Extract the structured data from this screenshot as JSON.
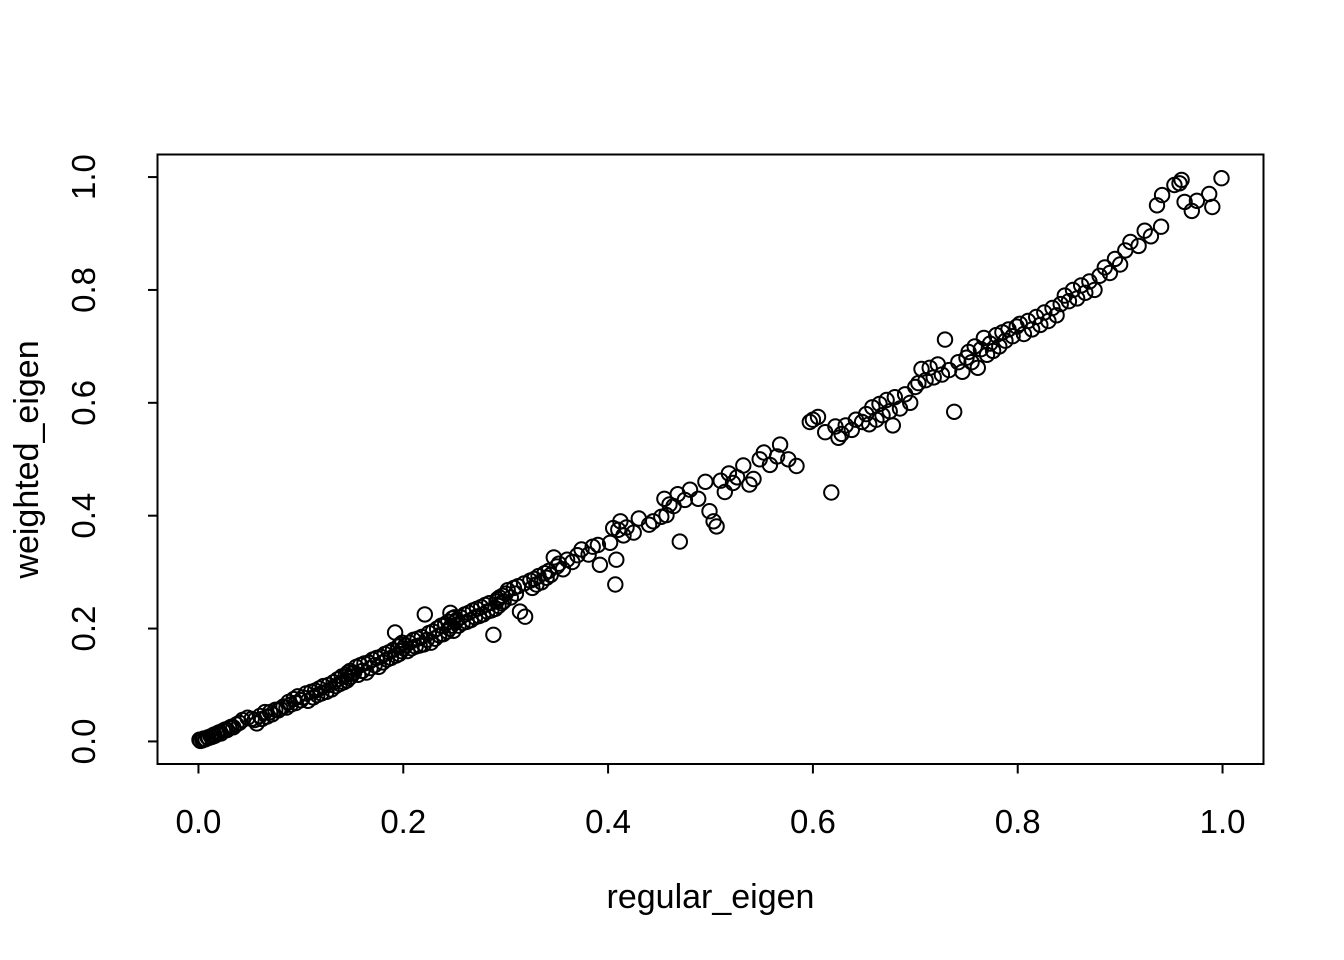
{
  "figure": {
    "background": "#ffffff",
    "axis_color": "#000000",
    "text_color": "#000000"
  },
  "chart_data": {
    "type": "scatter",
    "title": "",
    "xlabel": "regular_eigen",
    "ylabel": "weighted_eigen",
    "xlim": [
      0,
      1
    ],
    "ylim": [
      0,
      1
    ],
    "grid": false,
    "legend": "none",
    "x_ticks": [
      0,
      0.2,
      0.4,
      0.6,
      0.8,
      1.0
    ],
    "x_tick_labels": [
      "0.0",
      "0.2",
      "0.4",
      "0.6",
      "0.8",
      "1.0"
    ],
    "y_ticks": [
      0,
      0.2,
      0.4,
      0.6,
      0.8,
      1.0
    ],
    "y_tick_labels": [
      "0.0",
      "0.2",
      "0.4",
      "0.6",
      "0.8",
      "1.0"
    ],
    "marker": {
      "shape": "open-circle",
      "radius_px": 7.2,
      "stroke": "#000000",
      "stroke_width_px": 2
    },
    "points": [
      [
        0.001,
        0.003
      ],
      [
        0.002,
        0.001
      ],
      [
        0.004,
        0.002
      ],
      [
        0.005,
        0.005
      ],
      [
        0.007,
        0.004
      ],
      [
        0.009,
        0.007
      ],
      [
        0.01,
        0.006
      ],
      [
        0.012,
        0.009
      ],
      [
        0.013,
        0.008
      ],
      [
        0.015,
        0.012
      ],
      [
        0.016,
        0.01
      ],
      [
        0.018,
        0.014
      ],
      [
        0.02,
        0.016
      ],
      [
        0.022,
        0.014
      ],
      [
        0.024,
        0.019
      ],
      [
        0.026,
        0.021
      ],
      [
        0.028,
        0.02
      ],
      [
        0.03,
        0.024
      ],
      [
        0.032,
        0.026
      ],
      [
        0.034,
        0.025
      ],
      [
        0.037,
        0.03
      ],
      [
        0.04,
        0.033
      ],
      [
        0.043,
        0.038
      ],
      [
        0.048,
        0.042
      ],
      [
        0.052,
        0.04
      ],
      [
        0.055,
        0.038
      ],
      [
        0.057,
        0.032
      ],
      [
        0.06,
        0.045
      ],
      [
        0.062,
        0.04
      ],
      [
        0.065,
        0.052
      ],
      [
        0.067,
        0.044
      ],
      [
        0.07,
        0.052
      ],
      [
        0.072,
        0.048
      ],
      [
        0.075,
        0.056
      ],
      [
        0.078,
        0.055
      ],
      [
        0.08,
        0.058
      ],
      [
        0.083,
        0.062
      ],
      [
        0.086,
        0.06
      ],
      [
        0.088,
        0.07
      ],
      [
        0.09,
        0.065
      ],
      [
        0.093,
        0.075
      ],
      [
        0.095,
        0.068
      ],
      [
        0.097,
        0.08
      ],
      [
        0.1,
        0.073
      ],
      [
        0.102,
        0.078
      ],
      [
        0.105,
        0.085
      ],
      [
        0.107,
        0.072
      ],
      [
        0.11,
        0.088
      ],
      [
        0.112,
        0.078
      ],
      [
        0.114,
        0.09
      ],
      [
        0.116,
        0.082
      ],
      [
        0.118,
        0.094
      ],
      [
        0.12,
        0.085
      ],
      [
        0.122,
        0.098
      ],
      [
        0.125,
        0.088
      ],
      [
        0.127,
        0.1
      ],
      [
        0.13,
        0.092
      ],
      [
        0.132,
        0.105
      ],
      [
        0.134,
        0.098
      ],
      [
        0.136,
        0.11
      ],
      [
        0.138,
        0.102
      ],
      [
        0.14,
        0.115
      ],
      [
        0.142,
        0.105
      ],
      [
        0.144,
        0.118
      ],
      [
        0.145,
        0.108
      ],
      [
        0.146,
        0.122
      ],
      [
        0.147,
        0.112
      ],
      [
        0.148,
        0.125
      ],
      [
        0.149,
        0.115
      ],
      [
        0.15,
        0.12
      ],
      [
        0.152,
        0.122
      ],
      [
        0.154,
        0.132
      ],
      [
        0.156,
        0.118
      ],
      [
        0.158,
        0.135
      ],
      [
        0.16,
        0.125
      ],
      [
        0.162,
        0.138
      ],
      [
        0.164,
        0.122
      ],
      [
        0.166,
        0.14
      ],
      [
        0.168,
        0.13
      ],
      [
        0.17,
        0.145
      ],
      [
        0.172,
        0.135
      ],
      [
        0.174,
        0.148
      ],
      [
        0.176,
        0.132
      ],
      [
        0.178,
        0.15
      ],
      [
        0.18,
        0.14
      ],
      [
        0.182,
        0.155
      ],
      [
        0.184,
        0.145
      ],
      [
        0.186,
        0.158
      ],
      [
        0.188,
        0.148
      ],
      [
        0.19,
        0.162
      ],
      [
        0.192,
        0.193
      ],
      [
        0.193,
        0.152
      ],
      [
        0.195,
        0.168
      ],
      [
        0.196,
        0.155
      ],
      [
        0.197,
        0.172
      ],
      [
        0.198,
        0.16
      ],
      [
        0.199,
        0.175
      ],
      [
        0.2,
        0.165
      ],
      [
        0.202,
        0.17
      ],
      [
        0.204,
        0.16
      ],
      [
        0.206,
        0.175
      ],
      [
        0.208,
        0.165
      ],
      [
        0.21,
        0.18
      ],
      [
        0.212,
        0.168
      ],
      [
        0.214,
        0.182
      ],
      [
        0.216,
        0.17
      ],
      [
        0.218,
        0.185
      ],
      [
        0.22,
        0.172
      ],
      [
        0.221,
        0.225
      ],
      [
        0.223,
        0.18
      ],
      [
        0.225,
        0.192
      ],
      [
        0.227,
        0.175
      ],
      [
        0.229,
        0.195
      ],
      [
        0.231,
        0.182
      ],
      [
        0.233,
        0.2
      ],
      [
        0.235,
        0.188
      ],
      [
        0.237,
        0.205
      ],
      [
        0.239,
        0.19
      ],
      [
        0.241,
        0.208
      ],
      [
        0.243,
        0.195
      ],
      [
        0.244,
        0.212
      ],
      [
        0.245,
        0.2
      ],
      [
        0.246,
        0.228
      ],
      [
        0.247,
        0.205
      ],
      [
        0.248,
        0.218
      ],
      [
        0.249,
        0.196
      ],
      [
        0.25,
        0.22
      ],
      [
        0.251,
        0.212
      ],
      [
        0.252,
        0.215
      ],
      [
        0.254,
        0.205
      ],
      [
        0.256,
        0.22
      ],
      [
        0.258,
        0.21
      ],
      [
        0.26,
        0.225
      ],
      [
        0.262,
        0.212
      ],
      [
        0.264,
        0.228
      ],
      [
        0.266,
        0.215
      ],
      [
        0.268,
        0.232
      ],
      [
        0.27,
        0.22
      ],
      [
        0.272,
        0.235
      ],
      [
        0.274,
        0.222
      ],
      [
        0.276,
        0.238
      ],
      [
        0.278,
        0.225
      ],
      [
        0.28,
        0.242
      ],
      [
        0.282,
        0.23
      ],
      [
        0.284,
        0.245
      ],
      [
        0.286,
        0.232
      ],
      [
        0.288,
        0.189
      ],
      [
        0.29,
        0.235
      ],
      [
        0.291,
        0.248
      ],
      [
        0.292,
        0.252
      ],
      [
        0.293,
        0.24
      ],
      [
        0.294,
        0.255
      ],
      [
        0.296,
        0.245
      ],
      [
        0.297,
        0.258
      ],
      [
        0.298,
        0.248
      ],
      [
        0.3,
        0.262
      ],
      [
        0.302,
        0.268
      ],
      [
        0.305,
        0.255
      ],
      [
        0.308,
        0.272
      ],
      [
        0.31,
        0.262
      ],
      [
        0.312,
        0.275
      ],
      [
        0.314,
        0.23
      ],
      [
        0.318,
        0.28
      ],
      [
        0.319,
        0.221
      ],
      [
        0.324,
        0.285
      ],
      [
        0.326,
        0.272
      ],
      [
        0.328,
        0.288
      ],
      [
        0.33,
        0.278
      ],
      [
        0.332,
        0.293
      ],
      [
        0.335,
        0.282
      ],
      [
        0.338,
        0.298
      ],
      [
        0.34,
        0.29
      ],
      [
        0.342,
        0.302
      ],
      [
        0.344,
        0.295
      ],
      [
        0.347,
        0.326
      ],
      [
        0.35,
        0.31
      ],
      [
        0.352,
        0.315
      ],
      [
        0.356,
        0.305
      ],
      [
        0.36,
        0.322
      ],
      [
        0.365,
        0.318
      ],
      [
        0.37,
        0.33
      ],
      [
        0.374,
        0.34
      ],
      [
        0.381,
        0.331
      ],
      [
        0.385,
        0.345
      ],
      [
        0.39,
        0.348
      ],
      [
        0.392,
        0.313
      ],
      [
        0.402,
        0.352
      ],
      [
        0.405,
        0.378
      ],
      [
        0.407,
        0.278
      ],
      [
        0.408,
        0.322
      ],
      [
        0.41,
        0.375
      ],
      [
        0.412,
        0.39
      ],
      [
        0.415,
        0.365
      ],
      [
        0.418,
        0.379
      ],
      [
        0.425,
        0.37
      ],
      [
        0.43,
        0.395
      ],
      [
        0.44,
        0.384
      ],
      [
        0.444,
        0.39
      ],
      [
        0.452,
        0.398
      ],
      [
        0.455,
        0.43
      ],
      [
        0.457,
        0.401
      ],
      [
        0.46,
        0.42
      ],
      [
        0.464,
        0.417
      ],
      [
        0.468,
        0.438
      ],
      [
        0.47,
        0.354
      ],
      [
        0.475,
        0.428
      ],
      [
        0.48,
        0.446
      ],
      [
        0.488,
        0.43
      ],
      [
        0.495,
        0.46
      ],
      [
        0.499,
        0.408
      ],
      [
        0.503,
        0.39
      ],
      [
        0.506,
        0.381
      ],
      [
        0.51,
        0.462
      ],
      [
        0.514,
        0.442
      ],
      [
        0.518,
        0.475
      ],
      [
        0.522,
        0.458
      ],
      [
        0.526,
        0.468
      ],
      [
        0.532,
        0.489
      ],
      [
        0.538,
        0.455
      ],
      [
        0.542,
        0.465
      ],
      [
        0.548,
        0.5
      ],
      [
        0.552,
        0.512
      ],
      [
        0.558,
        0.49
      ],
      [
        0.565,
        0.505
      ],
      [
        0.568,
        0.526
      ],
      [
        0.576,
        0.5
      ],
      [
        0.584,
        0.488
      ],
      [
        0.597,
        0.566
      ],
      [
        0.6,
        0.57
      ],
      [
        0.605,
        0.575
      ],
      [
        0.612,
        0.548
      ],
      [
        0.618,
        0.441
      ],
      [
        0.622,
        0.558
      ],
      [
        0.625,
        0.538
      ],
      [
        0.628,
        0.545
      ],
      [
        0.632,
        0.56
      ],
      [
        0.638,
        0.552
      ],
      [
        0.642,
        0.57
      ],
      [
        0.648,
        0.566
      ],
      [
        0.652,
        0.58
      ],
      [
        0.655,
        0.562
      ],
      [
        0.658,
        0.592
      ],
      [
        0.662,
        0.57
      ],
      [
        0.665,
        0.598
      ],
      [
        0.668,
        0.578
      ],
      [
        0.672,
        0.605
      ],
      [
        0.675,
        0.585
      ],
      [
        0.678,
        0.56
      ],
      [
        0.68,
        0.61
      ],
      [
        0.685,
        0.59
      ],
      [
        0.69,
        0.615
      ],
      [
        0.695,
        0.6
      ],
      [
        0.7,
        0.628
      ],
      [
        0.703,
        0.635
      ],
      [
        0.706,
        0.66
      ],
      [
        0.71,
        0.64
      ],
      [
        0.714,
        0.662
      ],
      [
        0.718,
        0.645
      ],
      [
        0.722,
        0.668
      ],
      [
        0.726,
        0.65
      ],
      [
        0.729,
        0.712
      ],
      [
        0.733,
        0.658
      ],
      [
        0.738,
        0.584
      ],
      [
        0.742,
        0.672
      ],
      [
        0.746,
        0.655
      ],
      [
        0.75,
        0.68
      ],
      [
        0.752,
        0.69
      ],
      [
        0.755,
        0.672
      ],
      [
        0.758,
        0.7
      ],
      [
        0.761,
        0.662
      ],
      [
        0.764,
        0.695
      ],
      [
        0.767,
        0.715
      ],
      [
        0.77,
        0.685
      ],
      [
        0.773,
        0.705
      ],
      [
        0.776,
        0.692
      ],
      [
        0.779,
        0.72
      ],
      [
        0.782,
        0.7
      ],
      [
        0.785,
        0.725
      ],
      [
        0.788,
        0.71
      ],
      [
        0.791,
        0.73
      ],
      [
        0.795,
        0.718
      ],
      [
        0.799,
        0.735
      ],
      [
        0.802,
        0.74
      ],
      [
        0.806,
        0.722
      ],
      [
        0.81,
        0.745
      ],
      [
        0.814,
        0.73
      ],
      [
        0.818,
        0.752
      ],
      [
        0.822,
        0.738
      ],
      [
        0.826,
        0.76
      ],
      [
        0.83,
        0.745
      ],
      [
        0.834,
        0.768
      ],
      [
        0.838,
        0.755
      ],
      [
        0.842,
        0.775
      ],
      [
        0.846,
        0.79
      ],
      [
        0.85,
        0.78
      ],
      [
        0.854,
        0.8
      ],
      [
        0.858,
        0.785
      ],
      [
        0.862,
        0.808
      ],
      [
        0.866,
        0.795
      ],
      [
        0.87,
        0.815
      ],
      [
        0.875,
        0.8
      ],
      [
        0.88,
        0.825
      ],
      [
        0.885,
        0.84
      ],
      [
        0.89,
        0.83
      ],
      [
        0.895,
        0.855
      ],
      [
        0.9,
        0.845
      ],
      [
        0.905,
        0.87
      ],
      [
        0.91,
        0.885
      ],
      [
        0.918,
        0.878
      ],
      [
        0.924,
        0.905
      ],
      [
        0.93,
        0.895
      ],
      [
        0.936,
        0.95
      ],
      [
        0.94,
        0.912
      ],
      [
        0.941,
        0.968
      ],
      [
        0.953,
        0.986
      ],
      [
        0.958,
        0.989
      ],
      [
        0.96,
        0.995
      ],
      [
        0.963,
        0.956
      ],
      [
        0.97,
        0.94
      ],
      [
        0.975,
        0.958
      ],
      [
        0.987,
        0.97
      ],
      [
        0.99,
        0.947
      ],
      [
        0.999,
        0.998
      ]
    ]
  }
}
